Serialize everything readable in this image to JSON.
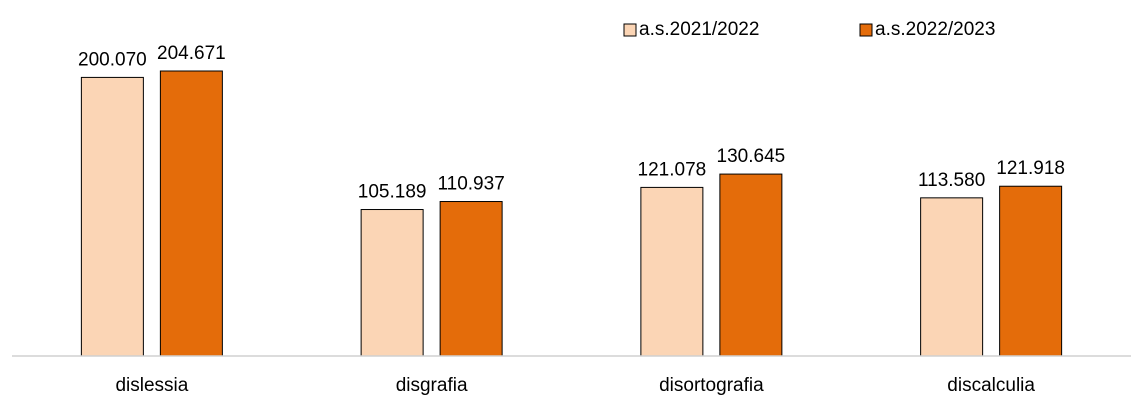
{
  "chart_data": {
    "type": "bar",
    "categories": [
      "dislessia",
      "disgrafia",
      "disortografia",
      "discalculia"
    ],
    "series": [
      {
        "name": "a.s.2021/2022",
        "values": [
          200070,
          105189,
          121078,
          113580
        ],
        "labels": [
          "200.070",
          "105.189",
          "121.078",
          "113.580"
        ],
        "color": "#fbd5b5",
        "stroke": "#000000"
      },
      {
        "name": "a.s.2022/2023",
        "values": [
          204671,
          110937,
          130645,
          121918
        ],
        "labels": [
          "204.671",
          "110.937",
          "130.645",
          "121.918"
        ],
        "color": "#e46c0a",
        "stroke": "#000000"
      }
    ],
    "ylim": [
      0,
      210000
    ],
    "grid": false,
    "legend_position": "top-right",
    "title": "",
    "xlabel": "",
    "ylabel": ""
  }
}
